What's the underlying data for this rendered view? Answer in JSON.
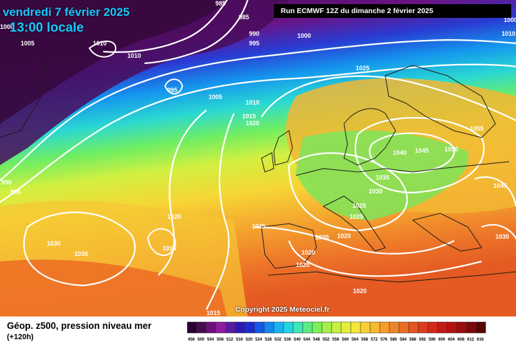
{
  "header": {
    "date": "vendredi 7 février 2025",
    "time": "13:00 locale",
    "run": "Run ECMWF 12Z du dimanche 2 février 2025"
  },
  "footer": {
    "copyright": "Copyright 2025 Meteociel.fr",
    "title": "Géop. z500, pression niveau mer",
    "subtitle": "(+120h)"
  },
  "scale": {
    "values": [
      "456",
      "500",
      "504",
      "508",
      "512",
      "516",
      "520",
      "524",
      "528",
      "532",
      "536",
      "540",
      "544",
      "548",
      "552",
      "556",
      "560",
      "564",
      "568",
      "572",
      "576",
      "580",
      "584",
      "588",
      "592",
      "596",
      "600",
      "604",
      "608",
      "612",
      "616"
    ],
    "colors": [
      "#2b0033",
      "#4a0a52",
      "#6d127a",
      "#8f1ca0",
      "#5a1aa0",
      "#2a1ab4",
      "#1a2cd0",
      "#1458e6",
      "#1488f0",
      "#18b4f0",
      "#24d4e0",
      "#3ce6b8",
      "#5aec82",
      "#7cf05a",
      "#a4f04a",
      "#c8f040",
      "#e6f03c",
      "#f6e838",
      "#f8d034",
      "#f8b830",
      "#f49c2c",
      "#f08428",
      "#ec6c24",
      "#e45420",
      "#dc3c1c",
      "#d42818",
      "#c41814",
      "#b41010",
      "#9c0c0c",
      "#7c0808",
      "#5a0404"
    ]
  },
  "pressure_labels": [
    "985",
    "985",
    "990",
    "995",
    "1000",
    "1010",
    "1010",
    "995",
    "1005",
    "1005",
    "1010",
    "1015",
    "1020",
    "1025",
    "1000",
    "990",
    "995",
    "1020",
    "1015",
    "1030",
    "1035",
    "1025",
    "1020",
    "1020",
    "1020",
    "1020",
    "1015",
    "1030",
    "1035",
    "1040",
    "1045",
    "1050",
    "1055",
    "1045",
    "1030",
    "1025",
    "1025",
    "1020",
    "1010",
    "1000"
  ]
}
